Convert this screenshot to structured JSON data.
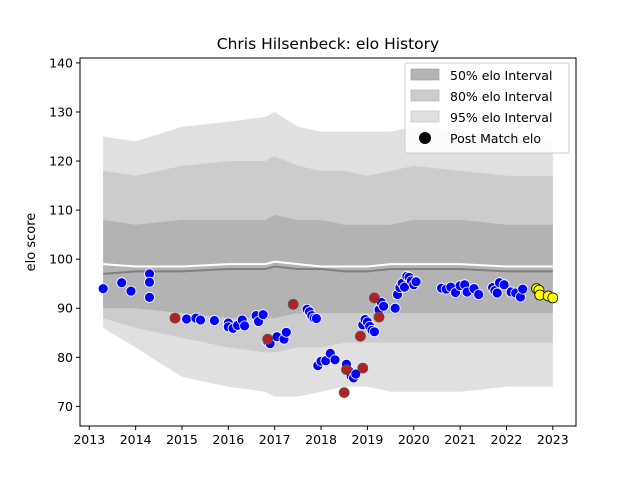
{
  "chart_data": {
    "type": "scatter",
    "title": "Chris Hilsenbeck: elo History",
    "xlabel": "",
    "ylabel": "elo score",
    "xlim": [
      2012.8,
      2023.5
    ],
    "ylim": [
      66,
      141
    ],
    "x_ticks": [
      2013,
      2014,
      2015,
      2016,
      2017,
      2018,
      2019,
      2020,
      2021,
      2022,
      2023
    ],
    "y_ticks": [
      70,
      80,
      90,
      100,
      110,
      120,
      130,
      140
    ],
    "grid": false,
    "legend_position": "top-right",
    "legend": [
      {
        "label": "50% elo Interval",
        "color": "#b3b3b3"
      },
      {
        "label": "80% elo Interval",
        "color": "#cccccc"
      },
      {
        "label": "95% elo Interval",
        "color": "#e0e0e0"
      },
      {
        "label": "Post Match elo",
        "color": "#000000"
      }
    ],
    "point_colors": {
      "blue": "#0000ff",
      "red": "#b22222",
      "yellow": "#ffff00"
    },
    "bands": {
      "x": [
        2013.3,
        2014.0,
        2015.0,
        2016.0,
        2016.8,
        2017.0,
        2017.5,
        2018.0,
        2018.5,
        2019.0,
        2019.5,
        2020.0,
        2021.0,
        2022.0,
        2023.0
      ],
      "p95_low": [
        86,
        82,
        76,
        74,
        73,
        72,
        72,
        73,
        74,
        74,
        73,
        73,
        73,
        74,
        74
      ],
      "p95_high": [
        125,
        124,
        127,
        128,
        129,
        130,
        127,
        126,
        126,
        126,
        126,
        127,
        126,
        125,
        124
      ],
      "p80_low": [
        88,
        86,
        84,
        82,
        81,
        81,
        82,
        82,
        83,
        83,
        83,
        83,
        83,
        83,
        83
      ],
      "p80_high": [
        118,
        117,
        119,
        120,
        120,
        121,
        119,
        118,
        118,
        117,
        118,
        119,
        118,
        117,
        117
      ],
      "p50_low": [
        90,
        90,
        89,
        88,
        88,
        88,
        89,
        89,
        89,
        89,
        89,
        89,
        89,
        89,
        89
      ],
      "p50_high": [
        108,
        107,
        108,
        108,
        108,
        109,
        108,
        108,
        107,
        107,
        107,
        108,
        108,
        107,
        107
      ],
      "median": [
        97,
        97.5,
        97.5,
        98,
        98,
        98.5,
        98,
        98,
        97.5,
        97.5,
        98,
        98,
        98,
        97.5,
        97.5
      ],
      "mean": [
        99,
        98.5,
        98.5,
        99,
        99,
        99.5,
        99,
        98.5,
        98.5,
        98.5,
        99,
        99,
        99,
        98.5,
        98.5
      ]
    },
    "series": [
      {
        "color": "blue",
        "points": [
          [
            2013.3,
            94
          ],
          [
            2013.7,
            95.2
          ],
          [
            2013.9,
            93.5
          ],
          [
            2014.3,
            97
          ],
          [
            2014.3,
            95.3
          ],
          [
            2014.3,
            92.2
          ],
          [
            2015.1,
            87.8
          ],
          [
            2015.3,
            88
          ],
          [
            2015.4,
            87.6
          ],
          [
            2015.7,
            87.5
          ],
          [
            2016.0,
            87
          ],
          [
            2016.0,
            86.2
          ],
          [
            2016.1,
            85.9
          ],
          [
            2016.2,
            86.5
          ],
          [
            2016.3,
            87.6
          ],
          [
            2016.35,
            86.4
          ],
          [
            2016.6,
            88.5
          ],
          [
            2016.65,
            87.3
          ],
          [
            2016.75,
            88.7
          ],
          [
            2016.85,
            83.2
          ],
          [
            2016.9,
            82.8
          ],
          [
            2017.05,
            84.2
          ],
          [
            2017.2,
            83.7
          ],
          [
            2017.25,
            85.1
          ],
          [
            2017.7,
            89.8
          ],
          [
            2017.75,
            89.3
          ],
          [
            2017.8,
            88.5
          ],
          [
            2017.85,
            88
          ],
          [
            2017.9,
            87.9
          ],
          [
            2017.93,
            78.3
          ],
          [
            2018.0,
            79.2
          ],
          [
            2018.1,
            79.3
          ],
          [
            2018.2,
            80.8
          ],
          [
            2018.3,
            79.5
          ],
          [
            2018.55,
            78.6
          ],
          [
            2018.6,
            77.2
          ],
          [
            2018.65,
            76.2
          ],
          [
            2018.7,
            75.8
          ],
          [
            2018.75,
            76.6
          ],
          [
            2018.9,
            86.6
          ],
          [
            2018.95,
            87.7
          ],
          [
            2019.0,
            87.2
          ],
          [
            2019.05,
            86.3
          ],
          [
            2019.1,
            85.5
          ],
          [
            2019.15,
            85.2
          ],
          [
            2019.25,
            89.7
          ],
          [
            2019.3,
            91.2
          ],
          [
            2019.35,
            90.4
          ],
          [
            2019.6,
            90
          ],
          [
            2019.65,
            92.8
          ],
          [
            2019.7,
            94.2
          ],
          [
            2019.75,
            95.1
          ],
          [
            2019.8,
            94.3
          ],
          [
            2019.85,
            96.5
          ],
          [
            2019.9,
            96.3
          ],
          [
            2019.95,
            95.6
          ],
          [
            2020.0,
            94.8
          ],
          [
            2020.05,
            95.4
          ],
          [
            2020.6,
            94.1
          ],
          [
            2020.7,
            93.9
          ],
          [
            2020.8,
            94.3
          ],
          [
            2020.9,
            93.2
          ],
          [
            2021.0,
            94.6
          ],
          [
            2021.1,
            94.8
          ],
          [
            2021.15,
            93.3
          ],
          [
            2021.3,
            94
          ],
          [
            2021.4,
            92.8
          ],
          [
            2021.7,
            94.2
          ],
          [
            2021.75,
            93.6
          ],
          [
            2021.8,
            93.1
          ],
          [
            2021.85,
            95.2
          ],
          [
            2021.95,
            94.8
          ],
          [
            2022.1,
            93.3
          ],
          [
            2022.2,
            93.1
          ],
          [
            2022.3,
            92.3
          ],
          [
            2022.35,
            93.9
          ]
        ]
      },
      {
        "color": "red",
        "points": [
          [
            2014.85,
            88
          ],
          [
            2016.85,
            83.7
          ],
          [
            2017.4,
            90.8
          ],
          [
            2018.5,
            72.8
          ],
          [
            2018.55,
            77.5
          ],
          [
            2018.85,
            84.3
          ],
          [
            2018.9,
            77.8
          ],
          [
            2019.15,
            92.1
          ],
          [
            2019.25,
            88.2
          ]
        ]
      },
      {
        "color": "yellow",
        "points": [
          [
            2022.65,
            94
          ],
          [
            2022.7,
            93.7
          ],
          [
            2022.72,
            92.7
          ],
          [
            2022.9,
            92.5
          ],
          [
            2023.0,
            92.1
          ]
        ]
      }
    ]
  }
}
